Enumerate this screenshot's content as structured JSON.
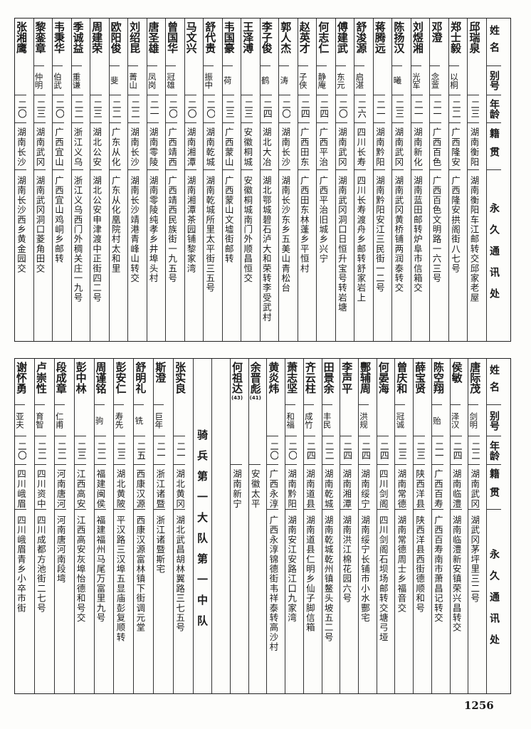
{
  "header": {
    "name": "姓名",
    "alias": "别号",
    "age": "年龄",
    "native": "籍贯",
    "address": "永久通讯处"
  },
  "top": {
    "people": [
      {
        "name": "邱瑞泉",
        "alias": "",
        "age": "二三",
        "native": "湖南衡阳",
        "address": "湖南衡阳车江邮转交邱家老屋"
      },
      {
        "name": "郑士毅",
        "alias": "以桐",
        "age": "二二",
        "native": "广西隆安",
        "address": "广西隆安拱阁街八七号"
      },
      {
        "name": "邓澄",
        "alias": "念萱",
        "age": "二一",
        "native": "广西百色",
        "address": "广西百色文明路一六三号"
      },
      {
        "name": "刘煜湘",
        "alias": "光军",
        "age": "二一",
        "native": "湖南新化",
        "address": "湖南蓝田邮转炉阜市信箱交"
      },
      {
        "name": "陈扬汉",
        "alias": "曦",
        "age": "二三",
        "native": "湖南武冈",
        "address": "湖南武冈黄桥铺两润泰转交"
      },
      {
        "name": "蒋腾远",
        "alias": "",
        "age": "二一",
        "native": "湖南黔阳",
        "address": "湖南黔阳安江三民街一二号"
      },
      {
        "name": "舒浚源",
        "alias": "启湛",
        "age": "二六",
        "native": "四川长寿",
        "address": "四川长寿渡舟乡邮转舒家岩上"
      },
      {
        "name": "傅建武",
        "alias": "东元",
        "age": "二〇",
        "native": "湖南武冈",
        "address": "湖南武冈洞口日恒升宝号转岩塘"
      },
      {
        "name": "何志仁",
        "alias": "静庵",
        "age": "二四",
        "native": "广西平治",
        "address": "广西平治旧城乡兴宁"
      },
      {
        "name": "赵英才",
        "alias": "子侠",
        "age": "二四",
        "native": "广西田东",
        "address": "广西田东林蓬乡平恒村"
      },
      {
        "name": "郭人杰",
        "alias": "涛",
        "age": "二〇",
        "native": "湖南长沙",
        "address": "湖南长沙东乡五美山青松台"
      },
      {
        "name": "李子俊",
        "alias": "鹤",
        "age": "二四",
        "native": "湖北大冶",
        "address": "湖北鄂城碧石泸大和荣转李受武村"
      },
      {
        "name": "王泽溥",
        "alias": "",
        "age": "二三",
        "native": "安徽桐城",
        "address": "安徽桐城南门外顺昌恒交"
      },
      {
        "name": "韦国豪",
        "alias": "荷",
        "age": "二三",
        "native": "广西蒙山",
        "address": "广西蒙山文墟街邮转"
      },
      {
        "name": "舒代贵",
        "alias": "振中",
        "age": "二〇",
        "native": "湖南乾城",
        "address": "湖南乾城所里太平街三五号"
      },
      {
        "name": "马文兴",
        "alias": "",
        "age": "二〇",
        "native": "湖南湘潭",
        "address": "湖南湘潭茶园铺黎家湾"
      },
      {
        "name": "曾国华",
        "alias": "冠雄",
        "age": "二〇",
        "native": "广西靖西",
        "address": "广西靖西民族街一九五号"
      },
      {
        "name": "唐圣雄",
        "alias": "凤岗",
        "age": "二一",
        "native": "湖南零陵",
        "address": "湖南零陵纯孝乡井埠头村"
      },
      {
        "name": "刘绍昆",
        "alias": "菁山",
        "age": "二二",
        "native": "湖南长沙",
        "address": "湖南长沙靖港青峰山转交"
      },
      {
        "name": "欧阳俊",
        "alias": "斐",
        "age": "二二",
        "native": "广东从化",
        "address": "广东从化凰院村太和里"
      },
      {
        "name": "周建荣",
        "alias": "",
        "age": "二三",
        "native": "湖北公安",
        "address": "湖北公安申津渡中正街四二号"
      },
      {
        "name": "季诚益",
        "alias": "重谦",
        "age": "二二",
        "native": "浙江义乌",
        "address": "浙江义乌西门外稠关庄一九号"
      },
      {
        "name": "韦秉华",
        "alias": "伯武",
        "age": "二〇",
        "native": "广西宜山",
        "address": "广西宜山鸡峒乡邮转"
      },
      {
        "name": "黎銮章",
        "alias": "仲明",
        "age": "二三",
        "native": "湖南武冈",
        "address": "湖南武冈洞口菱角田交"
      },
      {
        "name": "张湘鹰",
        "alias": "",
        "age": "二〇",
        "native": "湖南长沙",
        "address": "湖南长沙西乡黄金园交"
      }
    ]
  },
  "bottom": {
    "unit_label": "骑兵第一大队第一中队",
    "people_right": [
      {
        "name": "唐际茂",
        "alias": "剑明",
        "age": "二二",
        "native": "湖南武冈",
        "address": "湖武冈茅坪里三二号"
      },
      {
        "name": "侯敏",
        "alias": "泽汉",
        "age": "二四",
        "native": "湖南临澧",
        "address": "湖南临澧新安镇荣兴昌转交"
      },
      {
        "name": "陈空翔",
        "alias": "贻",
        "age": "二一",
        "native": "广西百寿",
        "address": "广西百寿南市萧昌记转交"
      },
      {
        "name": "薛宝贤",
        "alias": "",
        "age": "二三",
        "native": "陕西洋县",
        "address": "陕西洋县西街德顺和号"
      },
      {
        "name": "曾庆和",
        "alias": "冠诚",
        "age": "二三",
        "native": "湖南常德",
        "address": "湖南常德周士乡福音交"
      },
      {
        "name": "何晏海",
        "alias": "",
        "age": "二四",
        "native": "四川剑阁",
        "address": "四川剑阁石坝场邮转交塘弓垭"
      },
      {
        "name": "酆辅周",
        "alias": "洪规",
        "age": "二四",
        "native": "湖南绥宁",
        "address": "湖南绥宁长铺市小水酆宅"
      },
      {
        "name": "李声平",
        "alias": "",
        "age": "二四",
        "native": "湖南湘潭",
        "address": "湖南洪江棉花园六号"
      },
      {
        "name": "田景余",
        "alias": "丰民",
        "age": "二二",
        "native": "湖南乾城",
        "address": "湖南乾城乾州镇鳌头坡五二号"
      },
      {
        "name": "齐云柱",
        "alias": "成竹",
        "age": "二四",
        "native": "湖南道县",
        "address": "湖南道县仁明乡仙子脚信箱"
      },
      {
        "name": "萧志坚",
        "alias": "和福",
        "age": "二〇",
        "native": "湖南黔阳",
        "address": "湖南安江安路江口九家湾"
      },
      {
        "name": "黄炎炜",
        "alias": "",
        "age": "二〇",
        "native": "广西永淳",
        "address": "广西永淳锦德街韦祥泰转高沙村"
      },
      {
        "name": "余晋彪",
        "note": "(41)",
        "alias": "",
        "age": "",
        "native": "安徽太平",
        "address": ""
      },
      {
        "name": "何祖达",
        "note": "(43)",
        "alias": "",
        "age": "",
        "native": "湖南新宁",
        "address": ""
      }
    ],
    "people_left": [
      {
        "name": "张实良",
        "alias": "",
        "age": "二一",
        "native": "湖北黄冈",
        "address": "湖北武昌胡林翼路三七五号"
      },
      {
        "name": "斯澄",
        "alias": "巨年",
        "age": "二一",
        "native": "浙江诸暨",
        "address": "浙江诸暨斯宅"
      },
      {
        "name": "舒明礼",
        "alias": "铣",
        "age": "二五",
        "native": "西康汉源",
        "address": "西康汉源富林镇下街调元堂"
      },
      {
        "name": "彭安仁",
        "alias": "寿先",
        "age": "二三",
        "native": "湖北黄陂",
        "address": "平汉路三汉埠五显庙彭复顺转"
      },
      {
        "name": "周谨铭",
        "alias": "驹",
        "age": "二二",
        "native": "福建闽侯",
        "address": "福建福州马尾万富里九号"
      },
      {
        "name": "彭中林",
        "alias": "",
        "age": "二三",
        "native": "江西高安",
        "address": "江西高安灰埠怡德和号交"
      },
      {
        "name": "段成章",
        "alias": "仁甫",
        "age": "二二",
        "native": "河南唐河",
        "address": "河南唐河南段塆"
      },
      {
        "name": "卢崇性",
        "alias": "育智",
        "age": "二二",
        "native": "四川资中",
        "address": "四川成都方池街二七号"
      },
      {
        "name": "谢怀勇",
        "alias": "亚夫",
        "age": "二〇",
        "native": "四川峨眉",
        "address": "四川峨眉青乡小卒市街"
      }
    ]
  },
  "page_number": "1256"
}
